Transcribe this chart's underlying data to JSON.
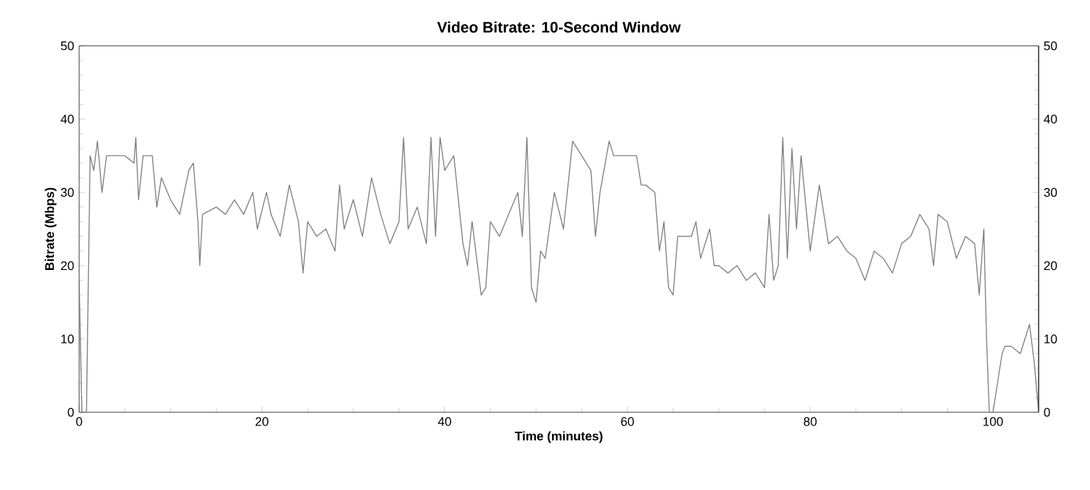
{
  "chart_data": {
    "type": "line",
    "title": "Video Bitrate: 10-Second Window",
    "xlabel": "Time (minutes)",
    "ylabel": "Bitrate (Mbps)",
    "x": [
      0,
      0.3,
      0.8,
      1.2,
      1.6,
      2,
      2.5,
      3,
      5,
      6,
      6.2,
      6.5,
      7,
      8,
      8.5,
      9,
      10,
      11,
      12,
      12.5,
      13,
      13.2,
      13.5,
      15,
      16,
      17,
      18,
      19,
      19.5,
      20.5,
      21,
      22,
      23,
      24,
      24.5,
      25,
      26,
      27,
      28,
      28.5,
      29,
      30,
      31,
      32,
      33,
      34,
      35,
      35.5,
      36,
      37,
      38,
      38.5,
      39,
      39.5,
      40,
      41,
      42,
      42.5,
      43,
      44,
      44.5,
      45,
      46,
      47,
      48,
      48.5,
      49,
      49.5,
      50,
      50.5,
      51,
      52,
      53,
      54,
      55,
      56,
      56.5,
      57,
      58,
      58.5,
      61,
      61.5,
      62,
      63,
      63.5,
      64,
      64.5,
      65,
      65.5,
      67,
      67.5,
      68,
      69,
      69.5,
      70,
      71,
      72,
      73,
      74,
      75,
      75.5,
      76,
      76.5,
      77,
      77.5,
      78,
      78.5,
      79,
      80,
      81,
      82,
      83,
      84,
      85,
      86,
      87,
      88,
      89,
      90,
      91,
      92,
      93,
      93.5,
      94,
      95,
      96,
      97,
      98,
      98.5,
      99,
      99.3,
      99.6,
      100,
      101,
      101.3,
      102,
      103,
      104,
      104.5,
      105
    ],
    "series": [
      {
        "color": "#7f7f7f",
        "values": [
          18,
          0,
          0,
          35,
          33,
          37,
          30,
          35,
          35,
          34,
          37.5,
          29,
          35,
          35,
          28,
          32,
          29,
          27,
          33,
          34,
          26,
          20,
          27,
          28,
          27,
          29,
          27,
          30,
          25,
          30,
          27,
          24,
          31,
          26,
          19,
          26,
          24,
          25,
          22,
          31,
          25,
          29,
          24,
          32,
          27,
          23,
          26,
          37.5,
          25,
          28,
          23,
          37.5,
          24,
          37.5,
          33,
          35,
          23,
          20,
          26,
          16,
          17,
          26,
          24,
          27,
          30,
          24,
          37.5,
          17,
          15,
          22,
          21,
          30,
          25,
          37,
          35,
          33,
          24,
          30,
          37,
          35,
          35,
          31,
          31,
          30,
          22,
          26,
          17,
          16,
          24,
          24,
          26,
          21,
          25,
          20,
          20,
          19,
          20,
          18,
          19,
          17,
          27,
          18,
          20,
          37.5,
          21,
          36,
          25,
          35,
          22,
          31,
          23,
          24,
          22,
          21,
          18,
          22,
          21,
          19,
          23,
          24,
          27,
          25,
          20,
          27,
          26,
          21,
          24,
          23,
          16,
          25,
          10,
          0,
          0,
          8,
          9,
          9,
          8,
          12,
          7,
          0
        ]
      }
    ],
    "xlim": [
      0,
      105
    ],
    "ylim": [
      0,
      50
    ],
    "xticks": [
      0,
      20,
      40,
      60,
      80,
      100
    ],
    "yticks": [
      0,
      10,
      20,
      30,
      40,
      50
    ],
    "y2lim": [
      0,
      50
    ],
    "y2ticks": [
      0,
      10,
      20,
      30,
      40,
      50
    ],
    "marker": "none",
    "line_style": "solid",
    "grid": false
  }
}
